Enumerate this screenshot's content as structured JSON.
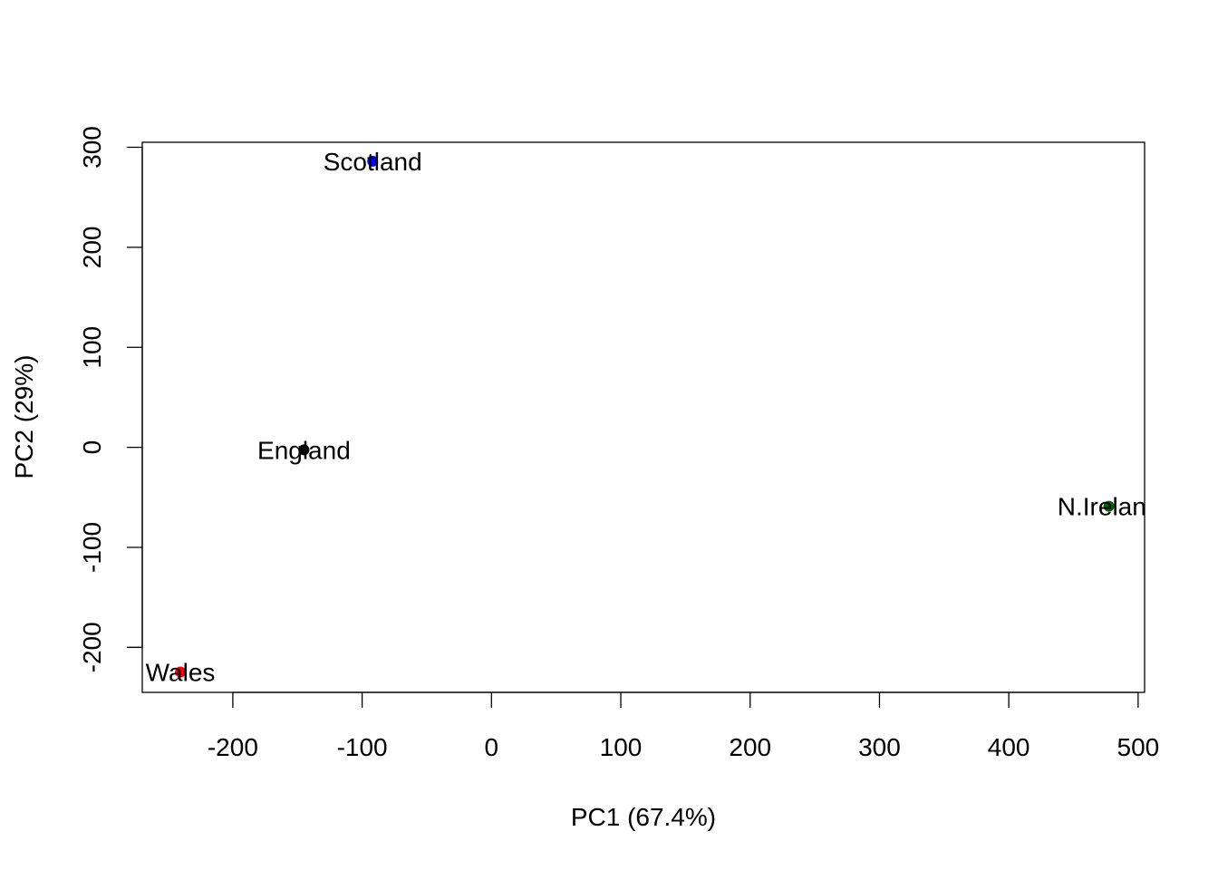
{
  "chart_data": {
    "type": "scatter",
    "title": "",
    "xlabel": "PC1 (67.4%)",
    "ylabel": "PC2 (29%)",
    "xlim": [
      -270,
      505
    ],
    "ylim": [
      -245,
      305
    ],
    "xticks": [
      -200,
      -100,
      0,
      100,
      200,
      300,
      400,
      500
    ],
    "yticks": [
      -200,
      -100,
      0,
      100,
      200,
      300
    ],
    "xtick_labels": [
      "-200",
      "-100",
      "0",
      "100",
      "200",
      "300",
      "400",
      "500"
    ],
    "ytick_labels": [
      "-200",
      "-100",
      "0",
      "100",
      "200",
      "300"
    ],
    "grid": false,
    "legend": "none",
    "points": [
      {
        "label": "England",
        "x": -144.99,
        "y": -2.53,
        "color": "#000000"
      },
      {
        "label": "Wales",
        "x": -240.53,
        "y": -224.65,
        "color": "#ff0000"
      },
      {
        "label": "Scotland",
        "x": -91.87,
        "y": 286.08,
        "color": "#0000ff"
      },
      {
        "label": "N.Ireland",
        "x": 477.39,
        "y": -58.9,
        "color": "#006400"
      }
    ]
  }
}
